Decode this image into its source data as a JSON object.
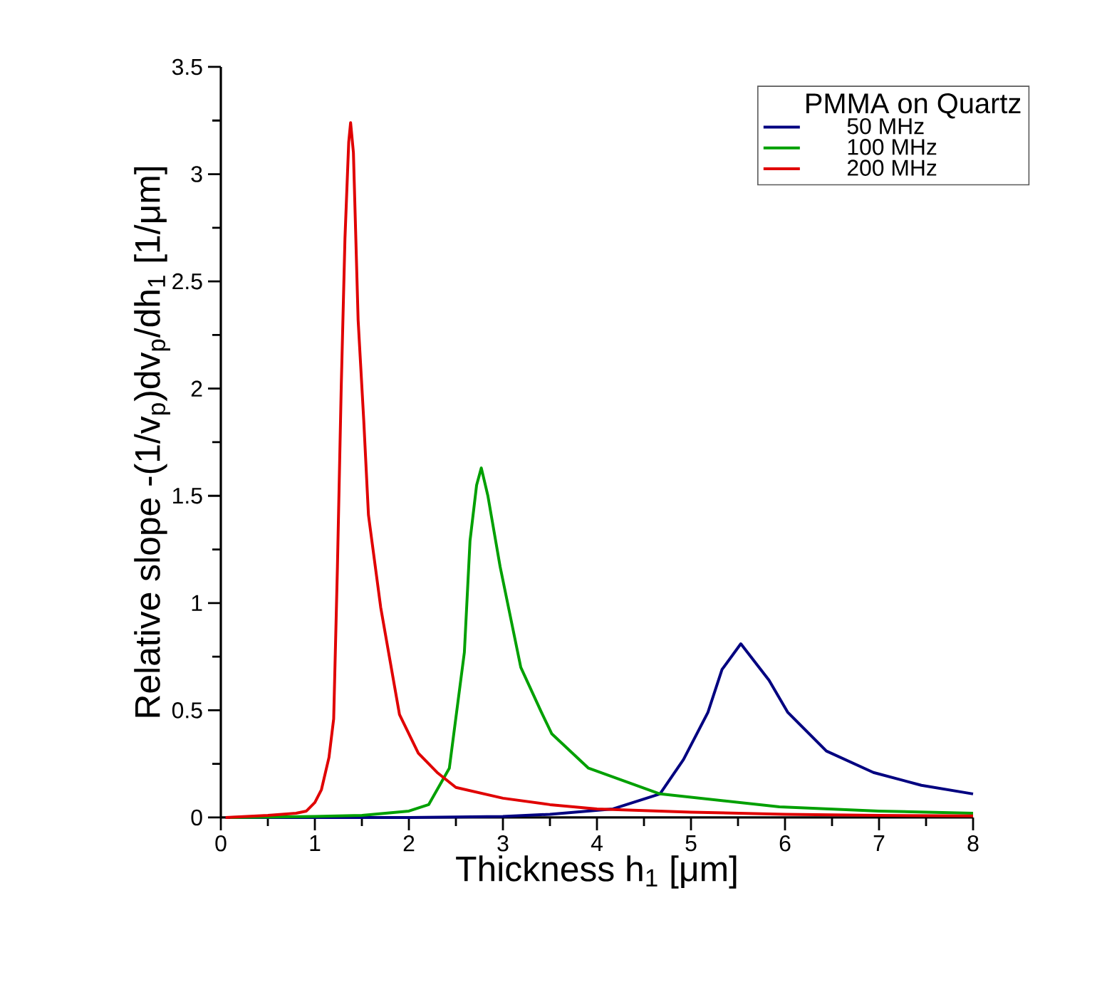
{
  "chart_data": {
    "type": "line",
    "xlabel": "Thickness h$_{1}$ [μm]",
    "ylabel": "Relative slope -(1/v$_{p}$)dv$_{p}$/dh$_{1}$ [1/μm]",
    "legend_title": "PMMA on Quartz",
    "legend": "top right",
    "xlim": [
      0,
      8
    ],
    "ylim": [
      0,
      3.5
    ],
    "xticks": [
      0,
      1,
      2,
      3,
      4,
      5,
      6,
      7,
      8
    ],
    "yticks": [
      0,
      0.5,
      1,
      1.5,
      2,
      2.5,
      3,
      3.5
    ],
    "series": [
      {
        "name": "50 MHz",
        "color": "#000080",
        "x": [
          0.05,
          1,
          2,
          3,
          3.5,
          4.17,
          4.67,
          4.92,
          5.18,
          5.33,
          5.53,
          5.83,
          6.03,
          6.44,
          6.94,
          7.45,
          8
        ],
        "values": [
          0,
          0,
          0,
          0.005,
          0.015,
          0.04,
          0.11,
          0.27,
          0.49,
          0.69,
          0.81,
          0.64,
          0.49,
          0.31,
          0.21,
          0.15,
          0.11
        ]
      },
      {
        "name": "100 MHz",
        "color": "#00a000",
        "x": [
          0.1,
          1,
          1.5,
          2,
          2.21,
          2.43,
          2.59,
          2.65,
          2.72,
          2.77,
          2.84,
          2.97,
          3.19,
          3.41,
          3.52,
          3.91,
          4.67,
          5.94,
          7,
          8
        ],
        "values": [
          0,
          0.005,
          0.01,
          0.03,
          0.06,
          0.23,
          0.77,
          1.29,
          1.55,
          1.63,
          1.5,
          1.17,
          0.7,
          0.49,
          0.39,
          0.23,
          0.11,
          0.05,
          0.03,
          0.02
        ]
      },
      {
        "name": "200 MHz",
        "color": "#e00000",
        "x": [
          0.05,
          0.5,
          0.8,
          0.91,
          1,
          1.07,
          1.15,
          1.2,
          1.24,
          1.28,
          1.32,
          1.36,
          1.38,
          1.41,
          1.46,
          1.52,
          1.57,
          1.7,
          1.9,
          2.1,
          2.3,
          2.5,
          3,
          3.5,
          4,
          5,
          6,
          7,
          8
        ],
        "values": [
          0,
          0.01,
          0.02,
          0.03,
          0.07,
          0.13,
          0.28,
          0.46,
          1.17,
          2.0,
          2.7,
          3.15,
          3.24,
          3.1,
          2.32,
          1.85,
          1.41,
          0.98,
          0.48,
          0.3,
          0.21,
          0.14,
          0.09,
          0.06,
          0.04,
          0.025,
          0.015,
          0.01,
          0.007
        ]
      }
    ]
  }
}
